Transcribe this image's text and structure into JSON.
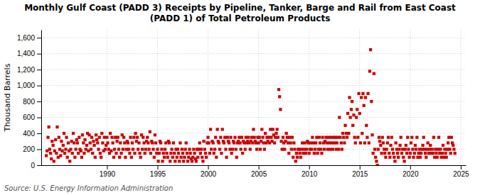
{
  "chart_data": {
    "type": "scatter",
    "title": "Monthly Gulf Coast (PADD 3) Receipts by Pipeline, Tanker, Barge and Rail from East Coast\n(PADD 1) of Total Petroleum Products",
    "y_label": "Thousand Barrels",
    "annotations": [
      "Source: U.S. Energy Information Administration"
    ],
    "color": "#cc0000",
    "marker": "square",
    "grid": true,
    "xlim": [
      1983.5,
      2025.5
    ],
    "ylim": [
      0,
      1700
    ],
    "xticks": [
      1990,
      1995,
      2000,
      2005,
      2010,
      2015,
      2020,
      2025
    ],
    "yticks": [
      0,
      200,
      400,
      600,
      800,
      {
        "value": 1000,
        "label": "1,000"
      },
      {
        "value": 1200,
        "label": "1,200"
      },
      {
        "value": 1400,
        "label": "1,400"
      },
      {
        "value": 1600,
        "label": "1,600"
      }
    ],
    "x": [
      1984.0,
      1984.08,
      1984.17,
      1984.25,
      1984.33,
      1984.42,
      1984.5,
      1984.58,
      1984.67,
      1984.75,
      1984.83,
      1984.92,
      1985.0,
      1985.08,
      1985.17,
      1985.25,
      1985.33,
      1985.42,
      1985.5,
      1985.58,
      1985.67,
      1985.75,
      1985.83,
      1985.92,
      1986.0,
      1986.08,
      1986.17,
      1986.25,
      1986.33,
      1986.42,
      1986.5,
      1986.58,
      1986.67,
      1986.75,
      1986.83,
      1986.92,
      1987.0,
      1987.08,
      1987.17,
      1987.25,
      1987.33,
      1987.42,
      1987.5,
      1987.58,
      1987.67,
      1987.75,
      1987.83,
      1987.92,
      1988.0,
      1988.08,
      1988.17,
      1988.25,
      1988.33,
      1988.42,
      1988.5,
      1988.58,
      1988.67,
      1988.75,
      1988.83,
      1988.92,
      1989.0,
      1989.08,
      1989.17,
      1989.25,
      1989.33,
      1989.42,
      1989.5,
      1989.58,
      1989.67,
      1989.75,
      1989.83,
      1989.92,
      1990.0,
      1990.08,
      1990.17,
      1990.25,
      1990.33,
      1990.42,
      1990.5,
      1990.58,
      1990.67,
      1990.75,
      1990.83,
      1990.92,
      1991.0,
      1991.08,
      1991.17,
      1991.25,
      1991.33,
      1991.42,
      1991.5,
      1991.58,
      1991.67,
      1991.75,
      1991.83,
      1991.92,
      1992.0,
      1992.08,
      1992.17,
      1992.25,
      1992.33,
      1992.42,
      1992.5,
      1992.58,
      1992.67,
      1992.75,
      1992.83,
      1992.92,
      1993.0,
      1993.08,
      1993.17,
      1993.25,
      1993.33,
      1993.42,
      1993.5,
      1993.58,
      1993.67,
      1993.75,
      1993.83,
      1993.92,
      1994.0,
      1994.08,
      1994.17,
      1994.25,
      1994.33,
      1994.42,
      1994.5,
      1994.58,
      1994.67,
      1994.75,
      1994.83,
      1994.92,
      1995.0,
      1995.08,
      1995.17,
      1995.25,
      1995.33,
      1995.42,
      1995.5,
      1995.58,
      1995.67,
      1995.75,
      1995.83,
      1995.92,
      1996.0,
      1996.08,
      1996.17,
      1996.25,
      1996.33,
      1996.42,
      1996.5,
      1996.58,
      1996.67,
      1996.75,
      1996.83,
      1996.92,
      1997.0,
      1997.08,
      1997.17,
      1997.25,
      1997.33,
      1997.42,
      1997.5,
      1997.58,
      1997.67,
      1997.75,
      1997.83,
      1997.92,
      1998.0,
      1998.08,
      1998.17,
      1998.25,
      1998.33,
      1998.42,
      1998.5,
      1998.58,
      1998.67,
      1998.75,
      1998.83,
      1998.92,
      1999.0,
      1999.08,
      1999.17,
      1999.25,
      1999.33,
      1999.42,
      1999.5,
      1999.58,
      1999.67,
      1999.75,
      1999.83,
      1999.92,
      2000.0,
      2000.08,
      2000.17,
      2000.25,
      2000.33,
      2000.42,
      2000.5,
      2000.58,
      2000.67,
      2000.75,
      2000.83,
      2000.92,
      2001.0,
      2001.08,
      2001.17,
      2001.25,
      2001.33,
      2001.42,
      2001.5,
      2001.58,
      2001.67,
      2001.75,
      2001.83,
      2001.92,
      2002.0,
      2002.08,
      2002.17,
      2002.25,
      2002.33,
      2002.42,
      2002.5,
      2002.58,
      2002.67,
      2002.75,
      2002.83,
      2002.92,
      2003.0,
      2003.08,
      2003.17,
      2003.25,
      2003.33,
      2003.42,
      2003.5,
      2003.58,
      2003.67,
      2003.75,
      2003.83,
      2003.92,
      2004.0,
      2004.08,
      2004.17,
      2004.25,
      2004.33,
      2004.42,
      2004.5,
      2004.58,
      2004.67,
      2004.75,
      2004.83,
      2004.92,
      2005.0,
      2005.08,
      2005.17,
      2005.25,
      2005.33,
      2005.42,
      2005.5,
      2005.58,
      2005.67,
      2005.75,
      2005.83,
      2005.92,
      2006.0,
      2006.08,
      2006.17,
      2006.25,
      2006.33,
      2006.42,
      2006.5,
      2006.58,
      2006.67,
      2006.75,
      2006.83,
      2006.92,
      2007.0,
      2007.08,
      2007.17,
      2007.25,
      2007.33,
      2007.42,
      2007.5,
      2007.58,
      2007.67,
      2007.75,
      2007.83,
      2007.92,
      2008.0,
      2008.08,
      2008.17,
      2008.25,
      2008.33,
      2008.42,
      2008.5,
      2008.58,
      2008.67,
      2008.75,
      2008.83,
      2008.92,
      2009.0,
      2009.08,
      2009.17,
      2009.25,
      2009.33,
      2009.42,
      2009.5,
      2009.58,
      2009.67,
      2009.75,
      2009.83,
      2009.92,
      2010.0,
      2010.08,
      2010.17,
      2010.25,
      2010.33,
      2010.42,
      2010.5,
      2010.58,
      2010.67,
      2010.75,
      2010.83,
      2010.92,
      2011.0,
      2011.08,
      2011.17,
      2011.25,
      2011.33,
      2011.42,
      2011.5,
      2011.58,
      2011.67,
      2011.75,
      2011.83,
      2011.92,
      2012.0,
      2012.08,
      2012.17,
      2012.25,
      2012.33,
      2012.42,
      2012.5,
      2012.58,
      2012.67,
      2012.75,
      2012.83,
      2012.92,
      2013.0,
      2013.08,
      2013.17,
      2013.25,
      2013.33,
      2013.42,
      2013.5,
      2013.58,
      2013.67,
      2013.75,
      2013.83,
      2013.92,
      2014.0,
      2014.08,
      2014.17,
      2014.25,
      2014.33,
      2014.42,
      2014.5,
      2014.58,
      2014.67,
      2014.75,
      2014.83,
      2014.92,
      2015.0,
      2015.08,
      2015.17,
      2015.25,
      2015.33,
      2015.42,
      2015.5,
      2015.58,
      2015.67,
      2015.75,
      2015.83,
      2015.92,
      2016.0,
      2016.08,
      2016.17,
      2016.25,
      2016.33,
      2016.42,
      2016.5,
      2016.58,
      2016.67,
      2016.75,
      2016.83,
      2016.92,
      2017.0,
      2017.08,
      2017.17,
      2017.25,
      2017.33,
      2017.42,
      2017.5,
      2017.58,
      2017.67,
      2017.75,
      2017.83,
      2017.92,
      2018.0,
      2018.08,
      2018.17,
      2018.25,
      2018.33,
      2018.42,
      2018.5,
      2018.58,
      2018.67,
      2018.75,
      2018.83,
      2018.92,
      2019.0,
      2019.08,
      2019.17,
      2019.25,
      2019.33,
      2019.42,
      2019.5,
      2019.58,
      2019.67,
      2019.75,
      2019.83,
      2019.92,
      2020.0,
      2020.08,
      2020.17,
      2020.25,
      2020.33,
      2020.42,
      2020.5,
      2020.58,
      2020.67,
      2020.75,
      2020.83,
      2020.92,
      2021.0,
      2021.08,
      2021.17,
      2021.25,
      2021.33,
      2021.42,
      2021.5,
      2021.58,
      2021.67,
      2021.75,
      2021.83,
      2021.92,
      2022.0,
      2022.08,
      2022.17,
      2022.25,
      2022.33,
      2022.42,
      2022.5,
      2022.58,
      2022.67,
      2022.75,
      2022.83,
      2022.92,
      2023.0,
      2023.08,
      2023.17,
      2023.25,
      2023.33,
      2023.42,
      2023.5,
      2023.58,
      2023.67,
      2023.75,
      2023.83,
      2023.92,
      2024.0,
      2024.08,
      2024.17,
      2024.25,
      2024.33,
      2024.42
    ],
    "values": [
      120,
      180,
      350,
      480,
      200,
      150,
      80,
      300,
      250,
      50,
      180,
      320,
      150,
      480,
      100,
      350,
      200,
      120,
      300,
      180,
      250,
      400,
      150,
      200,
      350,
      100,
      280,
      180,
      50,
      200,
      300,
      150,
      400,
      280,
      100,
      200,
      320,
      280,
      150,
      350,
      200,
      180,
      100,
      380,
      280,
      150,
      320,
      200,
      250,
      400,
      180,
      380,
      280,
      200,
      350,
      150,
      300,
      250,
      100,
      380,
      320,
      280,
      200,
      350,
      150,
      100,
      400,
      280,
      180,
      350,
      200,
      250,
      350,
      280,
      200,
      150,
      400,
      180,
      350,
      280,
      100,
      200,
      350,
      150,
      300,
      350,
      200,
      100,
      280,
      150,
      380,
      200,
      350,
      280,
      100,
      200,
      300,
      280,
      200,
      150,
      350,
      100,
      280,
      200,
      350,
      150,
      400,
      300,
      350,
      200,
      280,
      150,
      100,
      380,
      200,
      350,
      280,
      150,
      200,
      300,
      350,
      280,
      200,
      420,
      150,
      300,
      280,
      200,
      100,
      380,
      280,
      150,
      200,
      50,
      150,
      300,
      280,
      200,
      50,
      150,
      100,
      200,
      280,
      150,
      100,
      300,
      280,
      50,
      150,
      200,
      100,
      280,
      150,
      50,
      200,
      100,
      200,
      150,
      50,
      280,
      100,
      200,
      150,
      50,
      100,
      200,
      280,
      150,
      50,
      100,
      200,
      150,
      80,
      50,
      100,
      200,
      150,
      80,
      50,
      200,
      100,
      200,
      280,
      150,
      200,
      100,
      50,
      300,
      200,
      150,
      100,
      280,
      350,
      280,
      150,
      450,
      200,
      300,
      280,
      150,
      200,
      350,
      100,
      450,
      300,
      280,
      200,
      350,
      150,
      450,
      300,
      280,
      350,
      200,
      100,
      350,
      300,
      280,
      200,
      350,
      150,
      200,
      300,
      280,
      350,
      200,
      100,
      280,
      300,
      350,
      280,
      200,
      350,
      150,
      300,
      280,
      200,
      350,
      280,
      300,
      350,
      280,
      200,
      300,
      350,
      280,
      450,
      350,
      300,
      280,
      200,
      350,
      280,
      350,
      200,
      300,
      450,
      350,
      280,
      200,
      400,
      280,
      350,
      300,
      350,
      280,
      450,
      350,
      300,
      450,
      380,
      280,
      350,
      400,
      450,
      350,
      950,
      860,
      700,
      300,
      200,
      350,
      280,
      200,
      300,
      400,
      350,
      280,
      150,
      350,
      280,
      200,
      350,
      100,
      280,
      200,
      50,
      150,
      100,
      200,
      200,
      150,
      100,
      200,
      280,
      150,
      200,
      280,
      150,
      200,
      300,
      280,
      150,
      200,
      280,
      200,
      350,
      280,
      150,
      200,
      280,
      350,
      150,
      200,
      350,
      280,
      200,
      150,
      350,
      280,
      200,
      300,
      350,
      280,
      200,
      350,
      280,
      200,
      350,
      280,
      200,
      350,
      280,
      350,
      200,
      280,
      350,
      200,
      600,
      350,
      280,
      200,
      400,
      350,
      280,
      500,
      400,
      350,
      650,
      400,
      850,
      600,
      700,
      800,
      500,
      630,
      350,
      280,
      600,
      700,
      350,
      900,
      650,
      280,
      850,
      400,
      900,
      750,
      280,
      850,
      500,
      350,
      900,
      280,
      1180,
      1450,
      800,
      380,
      150,
      1150,
      200,
      100,
      50,
      0,
      200,
      350,
      300,
      250,
      150,
      350,
      280,
      200,
      150,
      100,
      200,
      280,
      350,
      150,
      100,
      250,
      350,
      200,
      150,
      100,
      50,
      280,
      200,
      150,
      100,
      200,
      250,
      350,
      150,
      200,
      100,
      50,
      200,
      250,
      150,
      350,
      200,
      100,
      150,
      280,
      350,
      200,
      100,
      150,
      250,
      200,
      350,
      100,
      150,
      200,
      100,
      150,
      200,
      250,
      350,
      200,
      150,
      100,
      200,
      280,
      150,
      200,
      250,
      150,
      200,
      150,
      350,
      100,
      200,
      150,
      100,
      200,
      350,
      150,
      200,
      100,
      150,
      250,
      100,
      200,
      150,
      100,
      200,
      280,
      350,
      200,
      150,
      350,
      280,
      250,
      200,
      150
    ]
  }
}
